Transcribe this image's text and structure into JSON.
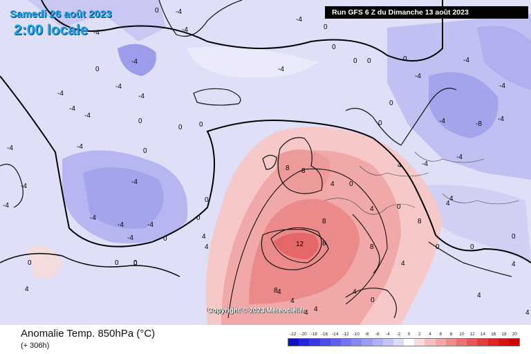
{
  "header": {
    "date_label": "Samedi 26 août 2023",
    "time_label": "2:00 locale",
    "run_label": "Run GFS 6 Z du Dimanche 13 août 2023"
  },
  "footer": {
    "title": "Anomalie Temp. 850hPa (°C)",
    "forecast_hours": "(+ 306h)",
    "copyright": "Copyright © 2023 Meteociel.fr"
  },
  "legend": {
    "ticks": [
      "-22",
      "-20",
      "-18",
      "-16",
      "-14",
      "-12",
      "-10",
      "-8",
      "-6",
      "-4",
      "-2",
      "0",
      "2",
      "4",
      "6",
      "8",
      "10",
      "12",
      "14",
      "16",
      "18",
      "20"
    ],
    "colors": [
      "#1010c8",
      "#2424d8",
      "#3838e0",
      "#4c4ce6",
      "#6060ec",
      "#7474f0",
      "#8888f2",
      "#9c9cf4",
      "#b0b0f6",
      "#c4c4f8",
      "#dcdcfa",
      "#ffffff",
      "#fadada",
      "#f6c0c0",
      "#f2a6a6",
      "#ee8c8c",
      "#ea7272",
      "#e65858",
      "#e23e3e",
      "#de2424",
      "#d81010",
      "#d00000"
    ]
  },
  "map": {
    "colors": {
      "sea_background": "#dfe0f8",
      "cold_light": "#c8c8f2",
      "cold_medium": "#a8a8ec",
      "cold_strong": "#8888e2",
      "warm_light": "#f8cfcf",
      "warm_medium": "#f2a6a6",
      "warm_strong": "#ea8080",
      "warm_peak": "#e46464",
      "contour_line": "#000000",
      "coastline": "#111111",
      "border_line": "#444444"
    },
    "contour_labels": [
      "-4",
      "0",
      "-4",
      "-4",
      "-4",
      "-4",
      "-4",
      "-4",
      "-4",
      "0",
      "0",
      "-4",
      "0",
      "0",
      "-4",
      "-4",
      "-4",
      "0",
      "0",
      "0",
      "-4",
      "0",
      "-4",
      "-4",
      "0",
      "0",
      "-4",
      "0",
      "0",
      "0",
      "-4",
      "-4",
      "-4",
      "0",
      "0",
      "-4",
      "-4",
      "-4",
      "4",
      "4",
      "4",
      "0",
      "0",
      "0",
      "4",
      "8",
      "8",
      "8",
      "4",
      "4",
      "4",
      "4",
      "8",
      "8",
      "12",
      "8",
      "8",
      "4",
      "4",
      "4",
      "0",
      "0",
      "0",
      "4",
      "4",
      "4",
      "0",
      "0",
      "0",
      "4",
      "4",
      "-4",
      "-4",
      "-8",
      "-4",
      "-4",
      "-4",
      "0",
      "4"
    ]
  }
}
